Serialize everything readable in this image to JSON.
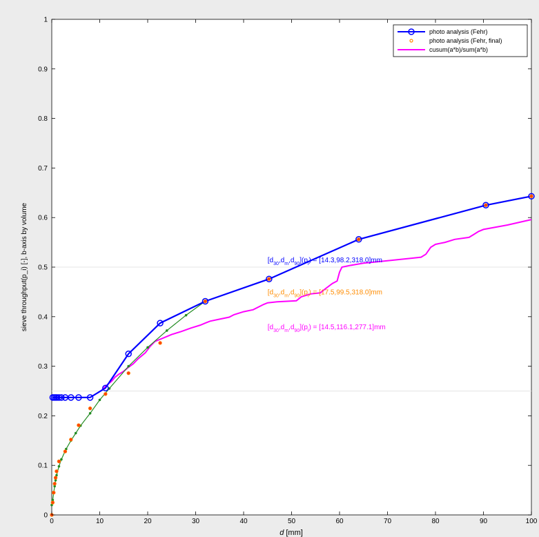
{
  "chart_data": {
    "type": "line",
    "title": "",
    "xlabel_main": "d",
    "xlabel_unit": " [mm]",
    "ylabel": "sieve throughput(p_i) [-], b-axis by volume",
    "xlim": [
      0,
      100
    ],
    "ylim": [
      0,
      1
    ],
    "x_ticks": [
      0,
      10,
      20,
      30,
      40,
      50,
      60,
      70,
      80,
      90,
      100
    ],
    "y_ticks": [
      0,
      0.1,
      0.2,
      0.3,
      0.4,
      0.5,
      0.6,
      0.7,
      0.8,
      0.9,
      1
    ],
    "grid_y": [
      0.25,
      0.5
    ],
    "legend_position": "top-right",
    "series": [
      {
        "name": "photo analysis (Fehr)",
        "color": "#0000ff",
        "style": "line-circle",
        "points": [
          [
            0.2,
            0.237
          ],
          [
            0.5,
            0.237
          ],
          [
            0.8,
            0.237
          ],
          [
            1.1,
            0.237
          ],
          [
            1.5,
            0.237
          ],
          [
            2,
            0.237
          ],
          [
            2.8,
            0.237
          ],
          [
            4,
            0.237
          ],
          [
            5.6,
            0.237
          ],
          [
            8,
            0.237
          ],
          [
            11.2,
            0.256
          ],
          [
            16,
            0.325
          ],
          [
            22.6,
            0.387
          ],
          [
            32,
            0.431
          ],
          [
            45.3,
            0.476
          ],
          [
            64,
            0.556
          ],
          [
            90.5,
            0.625
          ],
          [
            100,
            0.643
          ]
        ]
      },
      {
        "name": "photo analysis (Fehr, final)",
        "color": "#ff4500",
        "style": "marker",
        "points": [
          [
            0,
            0
          ],
          [
            0.2,
            0.025
          ],
          [
            0.4,
            0.045
          ],
          [
            0.6,
            0.063
          ],
          [
            0.8,
            0.075
          ],
          [
            1,
            0.088
          ],
          [
            1.5,
            0.108
          ],
          [
            2.8,
            0.128
          ],
          [
            4,
            0.152
          ],
          [
            5.6,
            0.181
          ],
          [
            8,
            0.215
          ],
          [
            11.2,
            0.244
          ],
          [
            16,
            0.286
          ],
          [
            22.6,
            0.347
          ],
          [
            32,
            0.431
          ],
          [
            45.3,
            0.476
          ],
          [
            64,
            0.556
          ],
          [
            90.5,
            0.625
          ],
          [
            100,
            0.643
          ]
        ]
      },
      {
        "name": "cusum(a*b)/sum(a*b)",
        "color": "#ff00ff",
        "style": "line",
        "points": [
          [
            10.5,
            0.253
          ],
          [
            11.5,
            0.262
          ],
          [
            12.5,
            0.27
          ],
          [
            13.2,
            0.278
          ],
          [
            14,
            0.284
          ],
          [
            15,
            0.29
          ],
          [
            16,
            0.298
          ],
          [
            17,
            0.305
          ],
          [
            18,
            0.315
          ],
          [
            19.5,
            0.327
          ],
          [
            20.5,
            0.34
          ],
          [
            21.5,
            0.35
          ],
          [
            23,
            0.356
          ],
          [
            25,
            0.364
          ],
          [
            27,
            0.37
          ],
          [
            29,
            0.377
          ],
          [
            31,
            0.383
          ],
          [
            32,
            0.387
          ],
          [
            33,
            0.391
          ],
          [
            35,
            0.395
          ],
          [
            37,
            0.399
          ],
          [
            38,
            0.404
          ],
          [
            40,
            0.41
          ],
          [
            42,
            0.414
          ],
          [
            44,
            0.424
          ],
          [
            45,
            0.428
          ],
          [
            47,
            0.43
          ],
          [
            51,
            0.432
          ],
          [
            52,
            0.44
          ],
          [
            54,
            0.446
          ],
          [
            56,
            0.448
          ],
          [
            57,
            0.456
          ],
          [
            58.5,
            0.467
          ],
          [
            59.5,
            0.472
          ],
          [
            60,
            0.49
          ],
          [
            60.5,
            0.5
          ],
          [
            62,
            0.503
          ],
          [
            65,
            0.508
          ],
          [
            70,
            0.513
          ],
          [
            75,
            0.518
          ],
          [
            77,
            0.52
          ],
          [
            78,
            0.526
          ],
          [
            79,
            0.54
          ],
          [
            80,
            0.546
          ],
          [
            82,
            0.55
          ],
          [
            84,
            0.556
          ],
          [
            87,
            0.56
          ],
          [
            88,
            0.566
          ],
          [
            89,
            0.572
          ],
          [
            90,
            0.576
          ],
          [
            95,
            0.585
          ],
          [
            100,
            0.596
          ]
        ]
      },
      {
        "name": "",
        "color": "#228b22",
        "style": "line-dot",
        "points": [
          [
            0,
            0.02
          ],
          [
            0.2,
            0.03
          ],
          [
            0.4,
            0.045
          ],
          [
            0.6,
            0.058
          ],
          [
            0.8,
            0.07
          ],
          [
            1,
            0.08
          ],
          [
            1.5,
            0.098
          ],
          [
            2,
            0.112
          ],
          [
            3,
            0.133
          ],
          [
            4,
            0.15
          ],
          [
            5,
            0.165
          ],
          [
            6,
            0.18
          ],
          [
            8,
            0.205
          ],
          [
            10,
            0.232
          ],
          [
            12,
            0.255
          ],
          [
            16,
            0.3
          ],
          [
            20,
            0.338
          ],
          [
            24,
            0.372
          ],
          [
            28,
            0.403
          ],
          [
            32,
            0.431
          ]
        ]
      }
    ],
    "annotations": [
      {
        "prefix": "[d",
        "s1": "30",
        "mid1": ",d",
        "s2": "m",
        "mid2": ",d",
        "s3": "90",
        "suffix1": "](p",
        "s4": "i",
        "values": ") = [14.3,98.2,318.0]mm",
        "color": "#0000ff",
        "at": [
          45,
          0.51
        ]
      },
      {
        "prefix": "[d",
        "s1": "30",
        "mid1": ",d",
        "s2": "m",
        "mid2": ",d",
        "s3": "90",
        "suffix1": "](p",
        "s4": "i",
        "values": ") = [17.5,99.5,318.0]mm",
        "color": "#ff8c00",
        "at": [
          45,
          0.445
        ]
      },
      {
        "prefix": "[d",
        "s1": "30",
        "mid1": ",d",
        "s2": "m",
        "mid2": ",d",
        "s3": "90",
        "suffix1": "](p",
        "s4": "i",
        "values": ") = [14.5,116.1,277.1]mm",
        "color": "#ff00ff",
        "at": [
          45,
          0.375
        ]
      }
    ]
  }
}
